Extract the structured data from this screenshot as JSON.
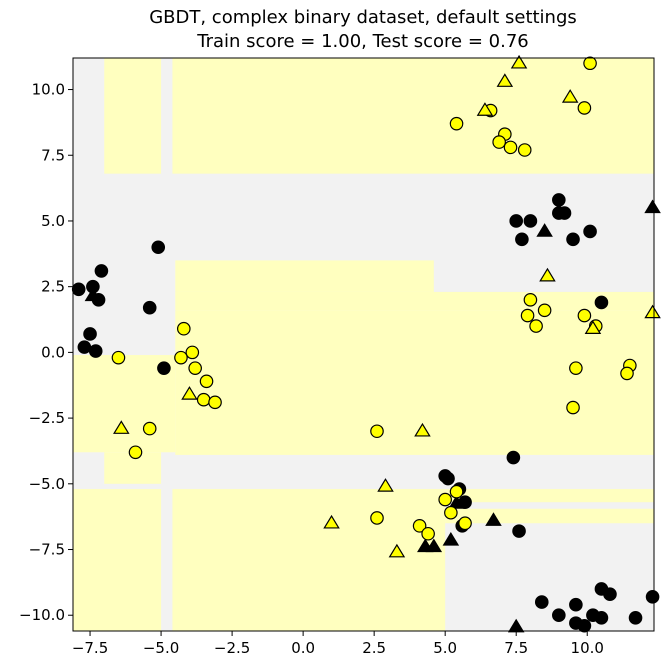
{
  "chart_data": {
    "type": "scatter",
    "title": "GBDT, complex binary dataset, default settings",
    "subtitle": "Train score = 1.00, Test score = 0.76",
    "xlabel": "",
    "ylabel": "",
    "xlim": [
      -8.1,
      12.35
    ],
    "ylim": [
      -10.6,
      11.2
    ],
    "x_ticks": [
      "−7.5",
      "−5.0",
      "−2.5",
      "0.0",
      "2.5",
      "5.0",
      "7.5",
      "10.0"
    ],
    "y_ticks": [
      "−10.0",
      "−7.5",
      "−5.0",
      "−2.5",
      "0.0",
      "2.5",
      "5.0",
      "7.5",
      "10.0"
    ],
    "x_tick_values": [
      -7.5,
      -5.0,
      -2.5,
      0.0,
      2.5,
      5.0,
      7.5,
      10.0
    ],
    "y_tick_values": [
      -10.0,
      -7.5,
      -5.0,
      -2.5,
      0.0,
      2.5,
      5.0,
      7.5,
      10.0
    ],
    "grid": false,
    "legend": "none",
    "colors": {
      "class0": "#000000",
      "class1": "#ffff00",
      "region0": "#f2f2f2",
      "region1": "#ffffbf"
    },
    "decision_regions_class1": [
      [
        -7.0,
        6.8,
        -5.0,
        11.2
      ],
      [
        -4.6,
        6.8,
        12.35,
        11.2
      ],
      [
        -4.5,
        3.5,
        4.6,
        2.3
      ],
      [
        -4.5,
        2.3,
        12.35,
        1.6
      ],
      [
        -8.1,
        -0.1,
        -4.5,
        -3.8
      ],
      [
        -4.5,
        1.6,
        12.35,
        -3.9
      ],
      [
        -7.0,
        -3.8,
        -5.0,
        -5.0
      ],
      [
        -8.1,
        -5.2,
        -5.0,
        -10.6
      ],
      [
        -4.6,
        -5.2,
        5.0,
        -10.6
      ],
      [
        5.0,
        -5.2,
        12.35,
        -5.7
      ],
      [
        5.0,
        -5.95,
        12.35,
        -6.5
      ]
    ],
    "series": [
      {
        "class": 0,
        "split": "train",
        "marker": "circle",
        "points": [
          [
            -7.9,
            2.4
          ],
          [
            -7.4,
            2.5
          ],
          [
            -7.1,
            3.1
          ],
          [
            -7.2,
            2.0
          ],
          [
            -7.5,
            0.7
          ],
          [
            -7.7,
            0.2
          ],
          [
            -7.3,
            0.05
          ],
          [
            -5.1,
            4.0
          ],
          [
            -5.4,
            1.7
          ],
          [
            -4.9,
            -0.6
          ],
          [
            9.0,
            5.8
          ],
          [
            9.2,
            5.3
          ],
          [
            9.0,
            5.3
          ],
          [
            9.5,
            4.3
          ],
          [
            10.1,
            4.6
          ],
          [
            7.5,
            5.0
          ],
          [
            8.0,
            5.0
          ],
          [
            7.7,
            4.3
          ],
          [
            10.5,
            1.9
          ],
          [
            7.4,
            -4.0
          ],
          [
            5.0,
            -4.7
          ],
          [
            5.5,
            -5.2
          ],
          [
            5.1,
            -4.8
          ],
          [
            5.7,
            -5.7
          ],
          [
            5.6,
            -6.6
          ],
          [
            7.6,
            -6.8
          ],
          [
            8.4,
            -9.5
          ],
          [
            9.0,
            -10.0
          ],
          [
            9.6,
            -9.6
          ],
          [
            9.6,
            -10.3
          ],
          [
            9.9,
            -10.4
          ],
          [
            10.2,
            -10.0
          ],
          [
            10.5,
            -10.1
          ],
          [
            10.5,
            -9.0
          ],
          [
            10.8,
            -9.2
          ],
          [
            11.7,
            -10.1
          ],
          [
            12.3,
            -9.3
          ]
        ]
      },
      {
        "class": 0,
        "split": "test",
        "marker": "triangle",
        "points": [
          [
            -7.4,
            2.15
          ],
          [
            8.5,
            4.6
          ],
          [
            12.3,
            5.5
          ],
          [
            4.3,
            -7.4
          ],
          [
            4.6,
            -7.4
          ],
          [
            5.2,
            -7.15
          ],
          [
            5.4,
            -5.75
          ],
          [
            6.7,
            -6.4
          ],
          [
            7.5,
            -10.45
          ]
        ]
      },
      {
        "class": 1,
        "split": "train",
        "marker": "circle",
        "points": [
          [
            10.1,
            11.0
          ],
          [
            6.6,
            9.2
          ],
          [
            9.9,
            9.3
          ],
          [
            5.4,
            8.7
          ],
          [
            7.1,
            8.3
          ],
          [
            6.9,
            8.0
          ],
          [
            7.3,
            7.8
          ],
          [
            7.8,
            7.7
          ],
          [
            8.0,
            2.0
          ],
          [
            8.5,
            1.6
          ],
          [
            7.9,
            1.4
          ],
          [
            8.2,
            1.0
          ],
          [
            9.9,
            1.4
          ],
          [
            10.3,
            1.0
          ],
          [
            11.5,
            -0.5
          ],
          [
            11.4,
            -0.8
          ],
          [
            9.6,
            -0.6
          ],
          [
            9.5,
            -2.1
          ],
          [
            -4.2,
            0.9
          ],
          [
            -3.9,
            0.0
          ],
          [
            -4.3,
            -0.2
          ],
          [
            -3.8,
            -0.6
          ],
          [
            -3.4,
            -1.1
          ],
          [
            -3.5,
            -1.8
          ],
          [
            -3.1,
            -1.9
          ],
          [
            -6.5,
            -0.2
          ],
          [
            -5.4,
            -2.9
          ],
          [
            -5.9,
            -3.8
          ],
          [
            2.6,
            -3.0
          ],
          [
            2.6,
            -6.3
          ],
          [
            4.1,
            -6.6
          ],
          [
            4.4,
            -6.9
          ],
          [
            5.0,
            -5.6
          ],
          [
            5.2,
            -6.1
          ],
          [
            5.4,
            -5.3
          ],
          [
            5.7,
            -6.5
          ]
        ]
      },
      {
        "class": 1,
        "split": "test",
        "marker": "triangle",
        "points": [
          [
            7.6,
            11.0
          ],
          [
            7.1,
            10.3
          ],
          [
            6.4,
            9.2
          ],
          [
            9.4,
            9.7
          ],
          [
            8.6,
            2.9
          ],
          [
            10.2,
            0.9
          ],
          [
            12.3,
            1.5
          ],
          [
            -4.0,
            -1.6
          ],
          [
            -6.4,
            -2.9
          ],
          [
            4.2,
            -3.0
          ],
          [
            2.9,
            -5.1
          ],
          [
            1.0,
            -6.5
          ],
          [
            3.3,
            -7.6
          ]
        ]
      }
    ]
  }
}
